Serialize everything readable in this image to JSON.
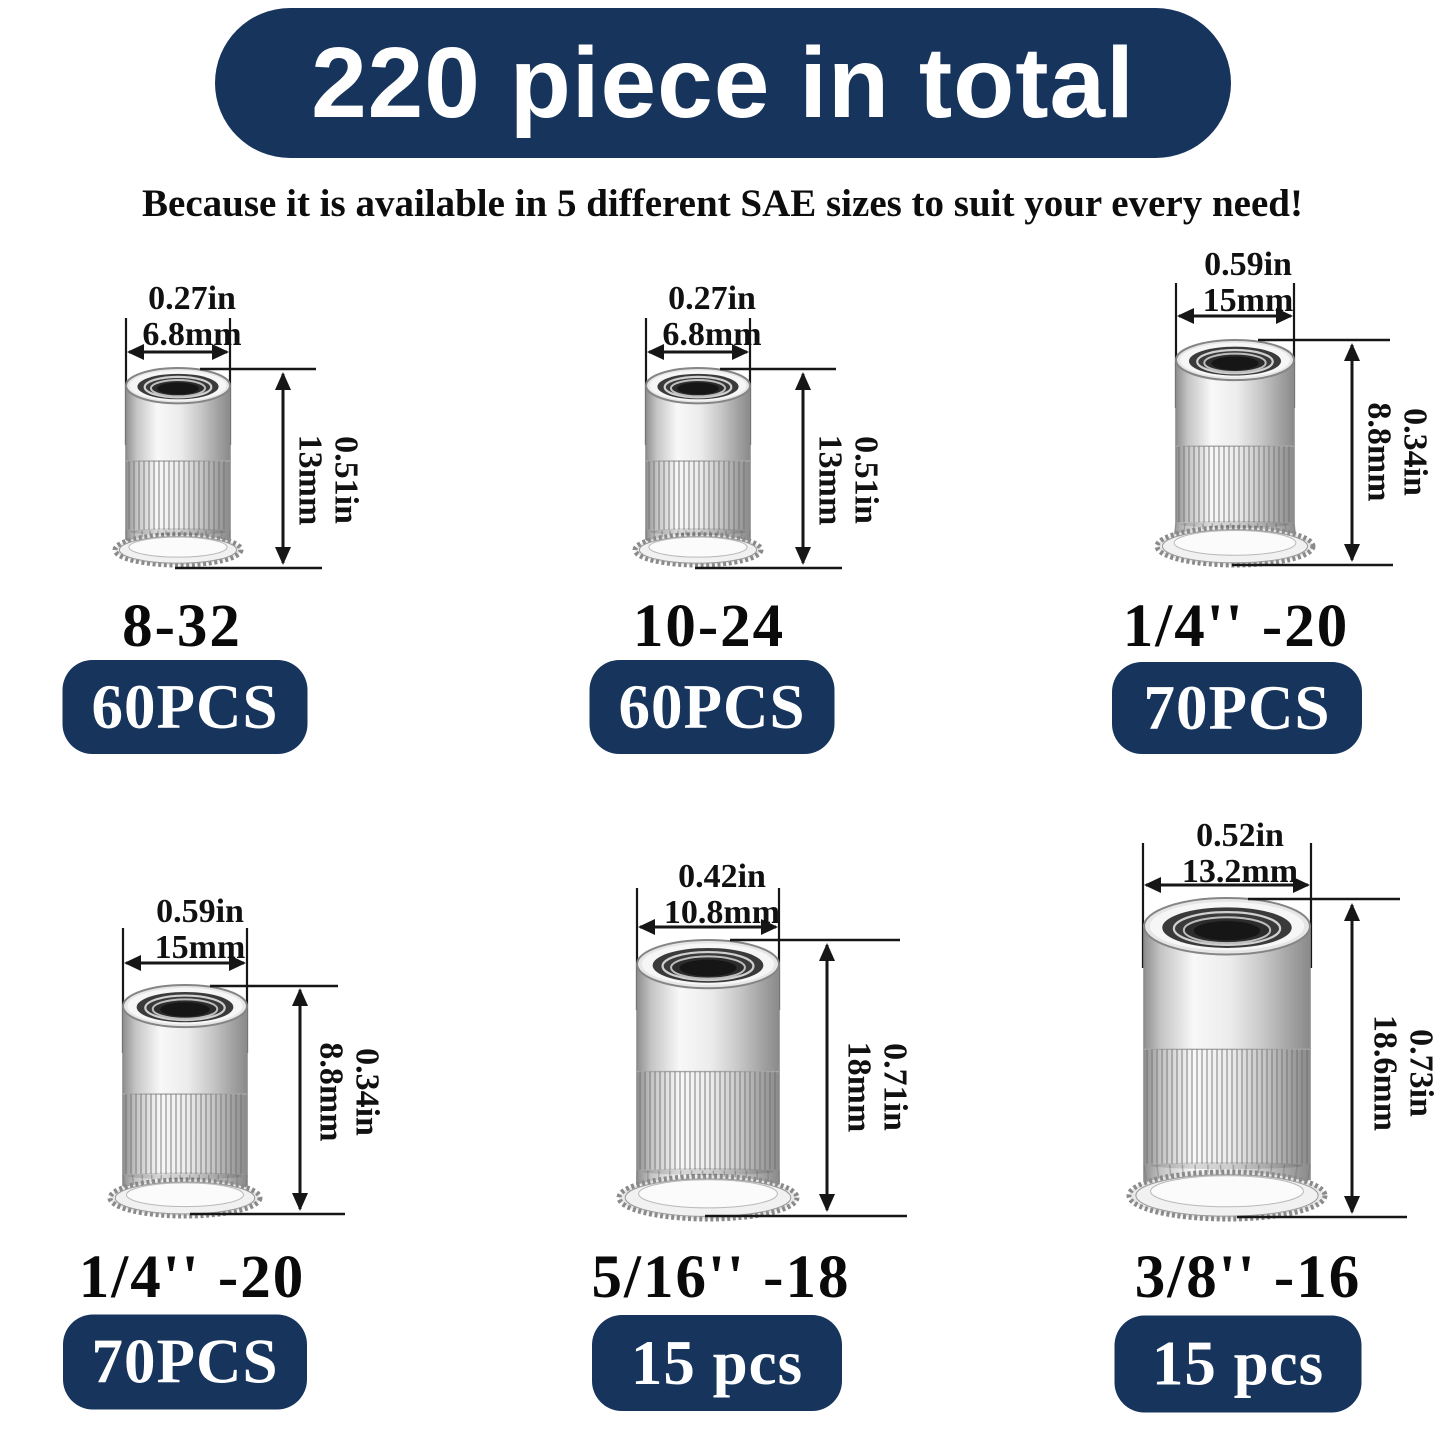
{
  "banner": {
    "text": "220 piece in total",
    "bg_color": "#17345c",
    "text_color": "#ffffff"
  },
  "subtitle": "Because it is available in 5 different SAE sizes to suit your every need!",
  "badge_color": "#17345c",
  "products": [
    {
      "size_label": "8-32",
      "count_label": "60PCS",
      "width_in": "0.27in",
      "width_mm": "6.8mm",
      "height_in": "0.51in",
      "height_mm": "13mm"
    },
    {
      "size_label": "10-24",
      "count_label": "60PCS",
      "width_in": "0.27in",
      "width_mm": "6.8mm",
      "height_in": "0.51in",
      "height_mm": "13mm"
    },
    {
      "size_label": "1/4'' -20",
      "count_label": "70PCS",
      "width_in": "0.59in",
      "width_mm": "15mm",
      "height_in": "0.34in",
      "height_mm": "8.8mm"
    },
    {
      "size_label": "1/4'' -20",
      "count_label": "70PCS",
      "width_in": "0.59in",
      "width_mm": "15mm",
      "height_in": "0.34in",
      "height_mm": "8.8mm"
    },
    {
      "size_label": "5/16'' -18",
      "count_label": "15 pcs",
      "width_in": "0.42in",
      "width_mm": "10.8mm",
      "height_in": "0.71in",
      "height_mm": "18mm"
    },
    {
      "size_label": "3/8'' -16",
      "count_label": "15 pcs",
      "width_in": "0.52in",
      "width_mm": "13.2mm",
      "height_in": "0.73in",
      "height_mm": "18.6mm"
    }
  ]
}
